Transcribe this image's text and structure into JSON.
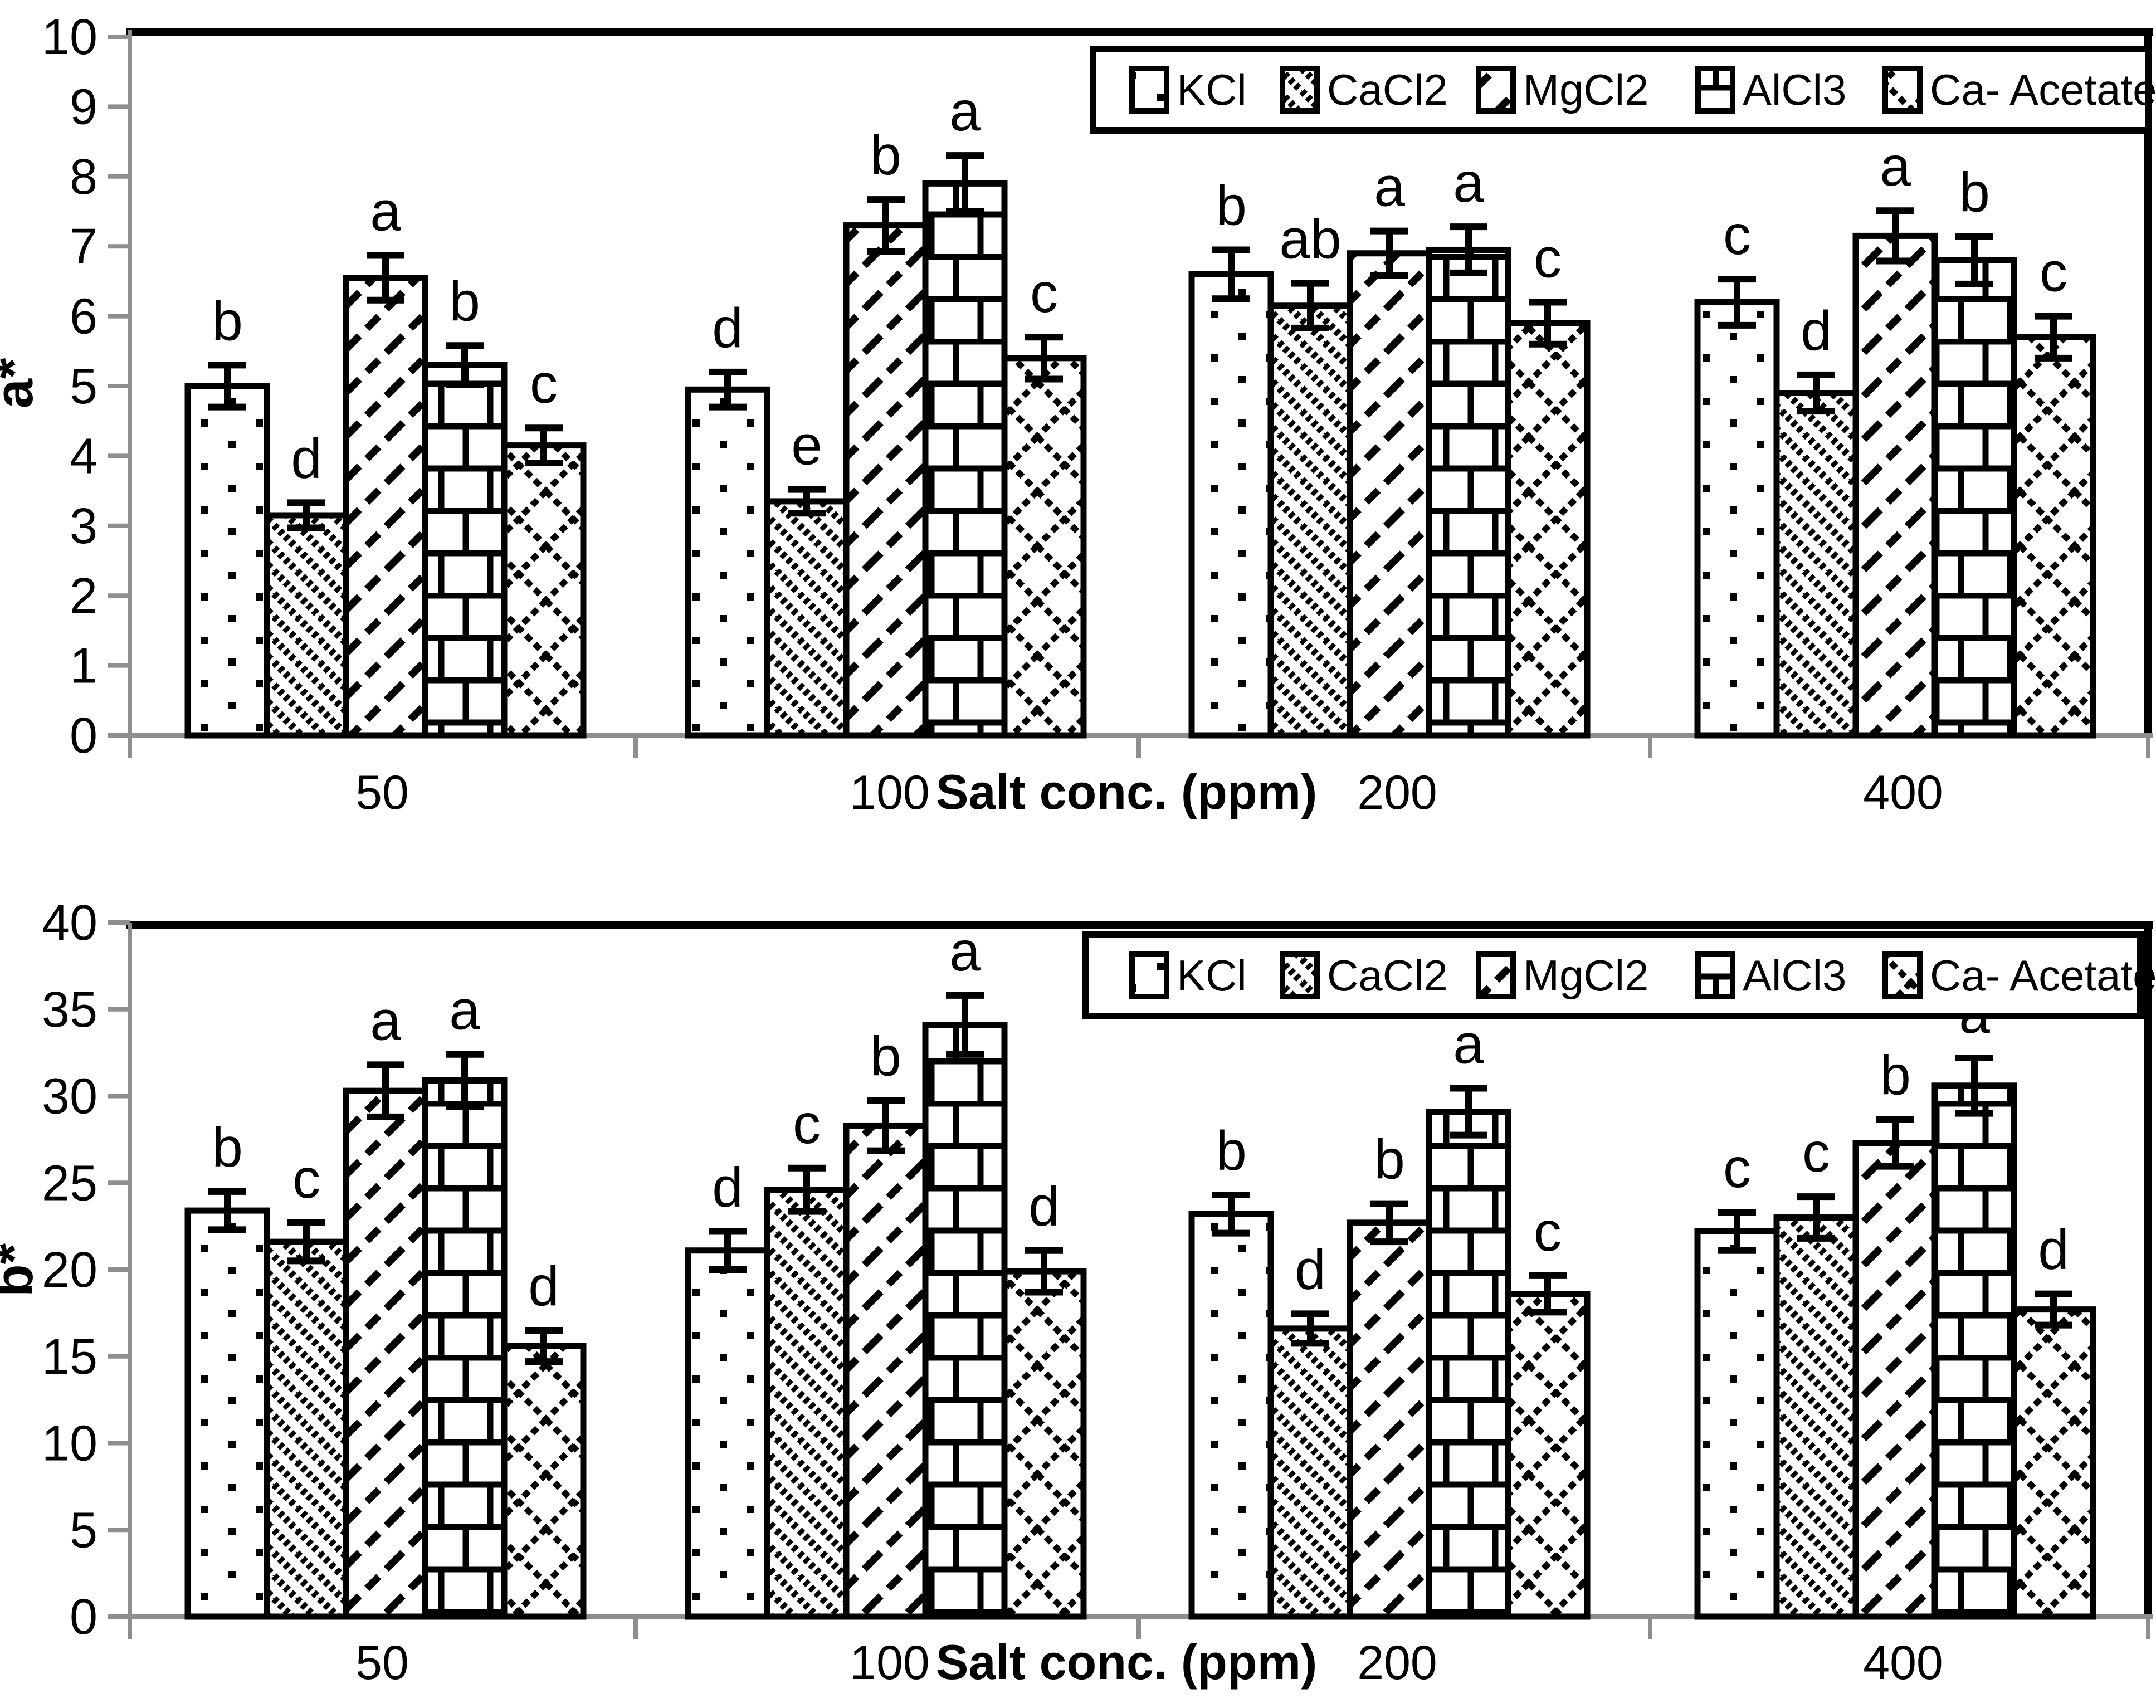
{
  "figure": {
    "background": "#ffffff",
    "axis_gray": "#8e8e8e",
    "ink": "#000000"
  },
  "legend": {
    "entries": [
      {
        "label": "KCl",
        "pattern": "dots-pattern-swatch"
      },
      {
        "label": "CaCl2",
        "pattern": "diagonal-down-pattern-swatch"
      },
      {
        "label": "MgCl2",
        "pattern": "diagonal-dash-pattern-swatch"
      },
      {
        "label": "AlCl3",
        "pattern": "brick-pattern-swatch"
      },
      {
        "label": "Ca- Acetate",
        "pattern": "diamond-crosshatch-pattern-swatch"
      }
    ],
    "position": "top-right-inside"
  },
  "chart_data": [
    {
      "id": "a-star",
      "type": "bar",
      "title": "",
      "ylabel": "a*",
      "xlabel": "Salt conc. (ppm)",
      "categories": [
        "50",
        "100",
        "200",
        "400"
      ],
      "ylim": [
        0,
        10
      ],
      "ytick_step": 1,
      "ytick_labels": [
        "0",
        "1",
        "2",
        "3",
        "4",
        "5",
        "6",
        "7",
        "8",
        "9",
        "10"
      ],
      "grid": false,
      "legend_position": "top-right",
      "series": [
        {
          "name": "KCl",
          "pattern": "dots",
          "values": [
            5.0,
            4.95,
            6.6,
            6.2
          ],
          "errors": [
            0.3,
            0.25,
            0.35,
            0.33
          ],
          "letters": [
            "b",
            "d",
            "b",
            "c"
          ]
        },
        {
          "name": "CaCl2",
          "pattern": "diag-down",
          "values": [
            3.15,
            3.35,
            6.15,
            4.9
          ],
          "errors": [
            0.18,
            0.17,
            0.32,
            0.26
          ],
          "letters": [
            "d",
            "e",
            "ab",
            "d"
          ]
        },
        {
          "name": "MgCl2",
          "pattern": "diag-dash",
          "values": [
            6.55,
            7.3,
            6.9,
            7.15
          ],
          "errors": [
            0.32,
            0.37,
            0.32,
            0.36
          ],
          "letters": [
            "a",
            "b",
            "a",
            "a"
          ]
        },
        {
          "name": "AlCl3",
          "pattern": "brick",
          "values": [
            5.3,
            7.9,
            6.95,
            6.8
          ],
          "errors": [
            0.28,
            0.4,
            0.33,
            0.34
          ],
          "letters": [
            "b",
            "a",
            "a",
            "b"
          ]
        },
        {
          "name": "Ca- Acetate",
          "pattern": "diamond",
          "values": [
            4.15,
            5.4,
            5.9,
            5.7
          ],
          "errors": [
            0.25,
            0.3,
            0.3,
            0.3
          ],
          "letters": [
            "c",
            "c",
            "c",
            "c"
          ]
        }
      ]
    },
    {
      "id": "b-star",
      "type": "bar",
      "title": "",
      "ylabel": "b*",
      "xlabel": "Salt conc. (ppm)",
      "categories": [
        "50",
        "100",
        "200",
        "400"
      ],
      "ylim": [
        0,
        40
      ],
      "ytick_step": 5,
      "ytick_labels": [
        "0",
        "5",
        "10",
        "15",
        "20",
        "25",
        "30",
        "35",
        "40"
      ],
      "grid": false,
      "legend_position": "top-right",
      "series": [
        {
          "name": "KCl",
          "pattern": "dots",
          "values": [
            23.4,
            21.1,
            23.2,
            22.2
          ],
          "errors": [
            1.1,
            1.1,
            1.1,
            1.1
          ],
          "letters": [
            "b",
            "d",
            "b",
            "c"
          ]
        },
        {
          "name": "CaCl2",
          "pattern": "diag-down",
          "values": [
            21.6,
            24.6,
            16.6,
            23.0
          ],
          "errors": [
            1.1,
            1.25,
            0.85,
            1.2
          ],
          "letters": [
            "c",
            "c",
            "d",
            "c"
          ]
        },
        {
          "name": "MgCl2",
          "pattern": "diag-dash",
          "values": [
            30.3,
            28.3,
            22.7,
            27.3
          ],
          "errors": [
            1.5,
            1.45,
            1.1,
            1.35
          ],
          "letters": [
            "a",
            "b",
            "b",
            "b"
          ]
        },
        {
          "name": "AlCl3",
          "pattern": "brick",
          "values": [
            30.9,
            34.1,
            29.1,
            30.6
          ],
          "errors": [
            1.5,
            1.7,
            1.35,
            1.6
          ],
          "letters": [
            "a",
            "a",
            "a",
            "a"
          ]
        },
        {
          "name": "Ca- Acetate",
          "pattern": "diamond",
          "values": [
            15.6,
            19.9,
            18.6,
            17.7
          ],
          "errors": [
            0.9,
            1.2,
            1.05,
            0.9
          ],
          "letters": [
            "d",
            "d",
            "c",
            "d"
          ]
        }
      ]
    }
  ]
}
